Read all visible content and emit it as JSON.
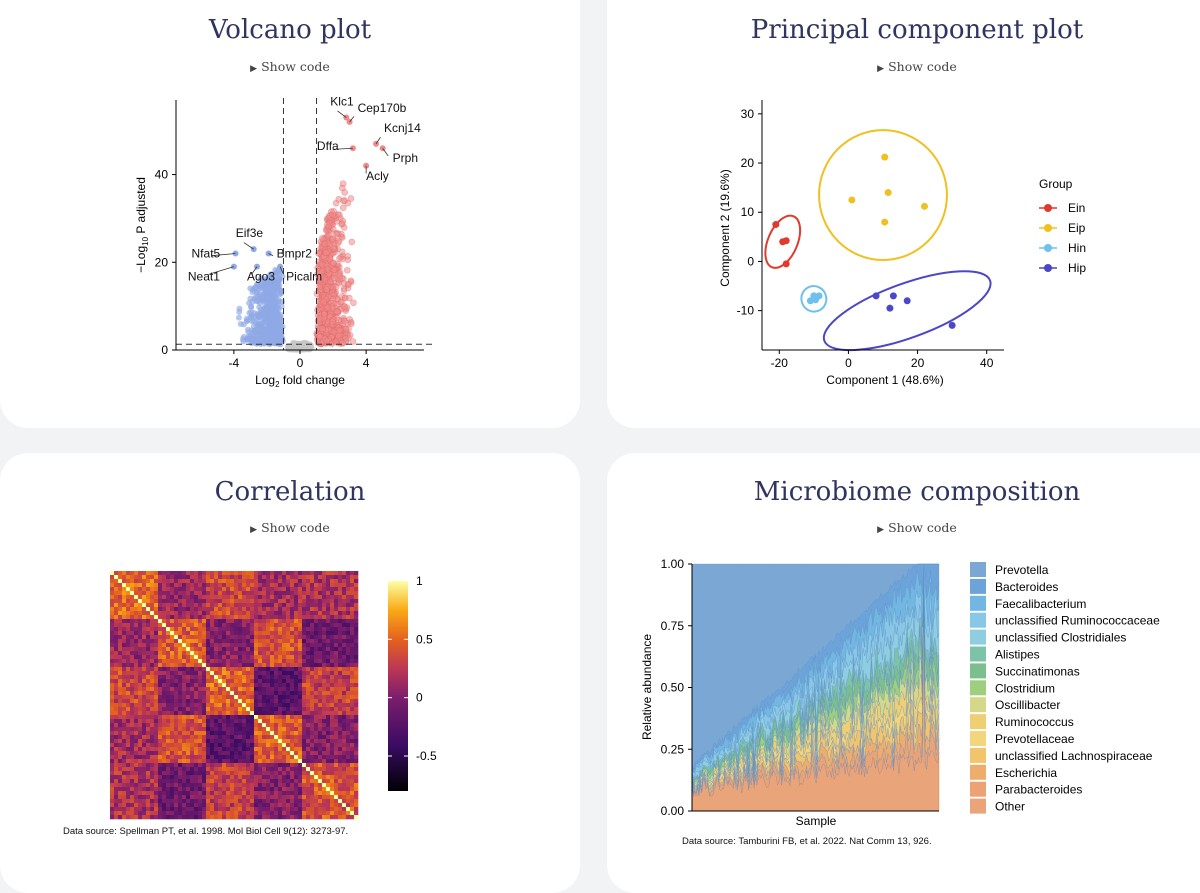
{
  "panels": {
    "volcano": {
      "title": "Volcano plot",
      "show_code": "Show code"
    },
    "pca": {
      "title": "Principal component plot",
      "show_code": "Show code"
    },
    "correlation": {
      "title": "Correlation",
      "show_code": "Show code",
      "source": "Data source: Spellman PT, et al. 1998. Mol Biol Cell 9(12): 3273-97."
    },
    "microbiome": {
      "title": "Microbiome composition",
      "show_code": "Show code",
      "source": "Data source: Tamburini FB, et al. 2022. Nat Comm 13, 926."
    }
  },
  "colors": {
    "down": "#8fa9e6",
    "up": "#f08a8a",
    "ns": "#c8c8c8",
    "Ein": "#e03a2e",
    "Eip": "#f0c020",
    "Hin": "#6ec0ee",
    "Hip": "#4b47c9"
  },
  "chart_data": [
    {
      "type": "scatter",
      "title": "",
      "xlabel_main": "Log",
      "xlabel_sub": "2",
      "xlabel_rest": " fold change",
      "ylabel_pre": "−Log",
      "ylabel_sub": "10",
      "ylabel_rest": " P adjusted",
      "xlim": [
        -7.5,
        7.5
      ],
      "ylim": [
        0,
        57
      ],
      "xticks": [
        "-4",
        "0",
        "4"
      ],
      "xtick_values": [
        -4,
        0,
        4
      ],
      "yticks": [
        "0",
        "20",
        "40"
      ],
      "ytick_values": [
        0,
        20,
        40
      ],
      "thresholds": {
        "logfc": [
          -1,
          1
        ],
        "padj": 1.3
      },
      "labeled_genes": [
        {
          "gene": "Klc1",
          "x": 2.8,
          "y": 53
        },
        {
          "gene": "Cep170b",
          "x": 3.0,
          "y": 52
        },
        {
          "gene": "Kcnj14",
          "x": 4.6,
          "y": 47
        },
        {
          "gene": "Dffa",
          "x": 3.2,
          "y": 46
        },
        {
          "gene": "Prph",
          "x": 5.0,
          "y": 46
        },
        {
          "gene": "Acly",
          "x": 4.0,
          "y": 42
        },
        {
          "gene": "Eif3e",
          "x": -2.8,
          "y": 23
        },
        {
          "gene": "Nfat5",
          "x": -3.9,
          "y": 22
        },
        {
          "gene": "Bmpr2",
          "x": -1.9,
          "y": 22
        },
        {
          "gene": "Neat1",
          "x": -4.0,
          "y": 19
        },
        {
          "gene": "Ago3",
          "x": -2.6,
          "y": 19
        },
        {
          "gene": "Picalm",
          "x": -1.2,
          "y": 19
        }
      ]
    },
    {
      "type": "scatter",
      "title": "",
      "xlabel": "Component 1 (48.6%)",
      "ylabel": "Component 2 (19.6%)",
      "xlim": [
        -25,
        45
      ],
      "ylim": [
        -18,
        32
      ],
      "xticks": [
        "-20",
        "0",
        "20",
        "40"
      ],
      "xtick_values": [
        -20,
        0,
        20,
        40
      ],
      "yticks": [
        "-10",
        "0",
        "10",
        "20",
        "30"
      ],
      "ytick_values": [
        -10,
        0,
        10,
        20,
        30
      ],
      "legend_title": "Group",
      "legend_position": "right",
      "series": [
        {
          "name": "Ein",
          "points": [
            [
              -21,
              7.5
            ],
            [
              -19,
              4
            ],
            [
              -18,
              4.2
            ],
            [
              -18,
              -0.5
            ]
          ],
          "ellipse": {
            "cx": -19,
            "cy": 4,
            "rx": 8,
            "ry": 3,
            "angle": -67
          }
        },
        {
          "name": "Eip",
          "points": [
            [
              1,
              12.5
            ],
            [
              10.5,
              21.2
            ],
            [
              11.5,
              14
            ],
            [
              10.5,
              8
            ],
            [
              22,
              11.2
            ]
          ],
          "ellipse": {
            "cx": 10,
            "cy": 13.5,
            "rx": 18.5,
            "ry": 13.2,
            "angle": 0
          }
        },
        {
          "name": "Hin",
          "points": [
            [
              -11,
              -8
            ],
            [
              -10,
              -7
            ],
            [
              -9.5,
              -7.8
            ],
            [
              -8.5,
              -7
            ]
          ],
          "ellipse": {
            "cx": -10,
            "cy": -7.6,
            "rx": 3.6,
            "ry": 2.6,
            "angle": -20
          }
        },
        {
          "name": "Hip",
          "points": [
            [
              8,
              -7
            ],
            [
              13,
              -7
            ],
            [
              17,
              -8
            ],
            [
              12,
              -9.5
            ],
            [
              30,
              -13
            ]
          ],
          "ellipse": {
            "cx": 17,
            "cy": -10,
            "rx": 25.5,
            "ry": 5.5,
            "angle": -20
          }
        }
      ]
    },
    {
      "type": "heatmap",
      "title": "",
      "colorbar_ticks": [
        "1",
        "0.5",
        "0",
        "-0.5"
      ],
      "colorbar_values": [
        1,
        0.5,
        0,
        -0.5
      ],
      "range": [
        -0.8,
        1
      ]
    },
    {
      "type": "area",
      "title": "",
      "xlabel": "Sample",
      "ylabel": "Relative abundance",
      "ylim": [
        0,
        1
      ],
      "yticks": [
        "0.00",
        "0.25",
        "0.50",
        "0.75",
        "1.00"
      ],
      "ytick_values": [
        0,
        0.25,
        0.5,
        0.75,
        1
      ],
      "legend_position": "right",
      "series": [
        {
          "name": "Prevotella",
          "color": "#7aa7d3"
        },
        {
          "name": "Bacteroides",
          "color": "#6ca3d9"
        },
        {
          "name": "Faecalibacterium",
          "color": "#72b6e2"
        },
        {
          "name": "unclassified Ruminococcaceae",
          "color": "#89c7e6"
        },
        {
          "name": "unclassified Clostridiales",
          "color": "#8fcde0"
        },
        {
          "name": "Alistipes",
          "color": "#7cc3a8"
        },
        {
          "name": "Succinatimonas",
          "color": "#7cbf8e"
        },
        {
          "name": "Clostridium",
          "color": "#9dcf7e"
        },
        {
          "name": "Oscillibacter",
          "color": "#d4d98a"
        },
        {
          "name": "Ruminococcus",
          "color": "#eecf73"
        },
        {
          "name": "Prevotellaceae",
          "color": "#f2d57c"
        },
        {
          "name": "unclassified Lachnospiraceae",
          "color": "#f2c46b"
        },
        {
          "name": "Escherichia",
          "color": "#efad6c"
        },
        {
          "name": "Parabacteroides",
          "color": "#eda275"
        },
        {
          "name": "Other",
          "color": "#e9a47a"
        }
      ]
    }
  ]
}
